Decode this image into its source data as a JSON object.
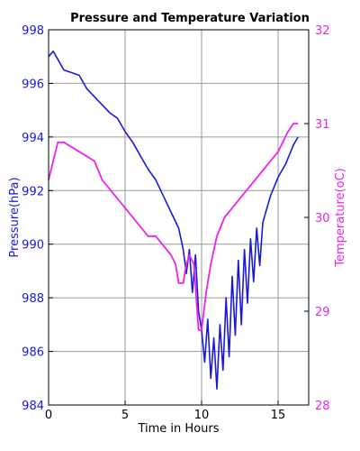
{
  "chart_data": {
    "type": "line",
    "title": "Pressure and Temperature Variation",
    "xlabel": "Time in Hours",
    "ylabel_left": "Pressure(hPa)",
    "ylabel_right": "Temperature(oC)",
    "xlim": [
      0,
      17
    ],
    "ylim_left": [
      984,
      998
    ],
    "ylim_right": [
      28,
      32
    ],
    "x_ticks": [
      0,
      5,
      10,
      15
    ],
    "y_ticks_left": [
      984,
      986,
      988,
      990,
      992,
      994,
      996,
      998
    ],
    "y_ticks_right": [
      28,
      29,
      30,
      31,
      32
    ],
    "grid": true,
    "colors": {
      "pressure": "#1a1ad6",
      "temperature": "#ee22ee",
      "grid": "#9a9a9a"
    },
    "series": [
      {
        "name": "Pressure(hPa)",
        "axis": "left",
        "x": [
          0,
          0.3,
          0.6,
          1.0,
          1.5,
          2.0,
          2.5,
          3.0,
          3.5,
          4.0,
          4.5,
          5.0,
          5.5,
          6.0,
          6.5,
          7.0,
          7.5,
          8.0,
          8.5,
          8.8,
          9.0,
          9.2,
          9.4,
          9.6,
          9.8,
          10.0,
          10.2,
          10.4,
          10.6,
          10.8,
          11.0,
          11.2,
          11.4,
          11.6,
          11.8,
          12.0,
          12.2,
          12.4,
          12.6,
          12.8,
          13.0,
          13.2,
          13.4,
          13.6,
          13.8,
          14.0,
          14.5,
          15.0,
          15.5,
          16.0,
          16.3
        ],
        "values": [
          997.0,
          997.2,
          996.9,
          996.5,
          996.4,
          996.3,
          995.8,
          995.5,
          995.2,
          994.9,
          994.7,
          994.2,
          993.8,
          993.3,
          992.8,
          992.4,
          991.8,
          991.2,
          990.6,
          989.8,
          988.9,
          989.8,
          988.2,
          989.6,
          987.5,
          986.8,
          985.6,
          987.2,
          985.0,
          986.5,
          984.6,
          987.0,
          985.3,
          988.0,
          985.8,
          988.8,
          986.6,
          989.4,
          987.0,
          989.8,
          987.8,
          990.2,
          988.6,
          990.6,
          989.2,
          990.8,
          991.8,
          992.5,
          993.0,
          993.7,
          994.0
        ]
      },
      {
        "name": "Temperature(oC)",
        "axis": "right",
        "x": [
          0,
          0.3,
          0.6,
          1.0,
          2.0,
          3.0,
          3.5,
          4.0,
          4.5,
          5.0,
          5.5,
          6.0,
          6.5,
          7.0,
          7.5,
          8.0,
          8.3,
          8.5,
          8.8,
          9.0,
          9.2,
          9.5,
          9.8,
          10.0,
          10.3,
          10.6,
          11.0,
          11.5,
          12.0,
          12.5,
          13.0,
          13.5,
          14.0,
          14.5,
          15.0,
          15.3,
          15.6,
          16.0,
          16.3
        ],
        "values": [
          30.4,
          30.6,
          30.8,
          30.8,
          30.7,
          30.6,
          30.4,
          30.3,
          30.2,
          30.1,
          30.0,
          29.9,
          29.8,
          29.8,
          29.7,
          29.6,
          29.5,
          29.3,
          29.3,
          29.5,
          29.6,
          29.5,
          28.8,
          28.8,
          29.2,
          29.5,
          29.8,
          30.0,
          30.1,
          30.2,
          30.3,
          30.4,
          30.5,
          30.6,
          30.7,
          30.8,
          30.9,
          31.0,
          31.0
        ]
      }
    ]
  }
}
